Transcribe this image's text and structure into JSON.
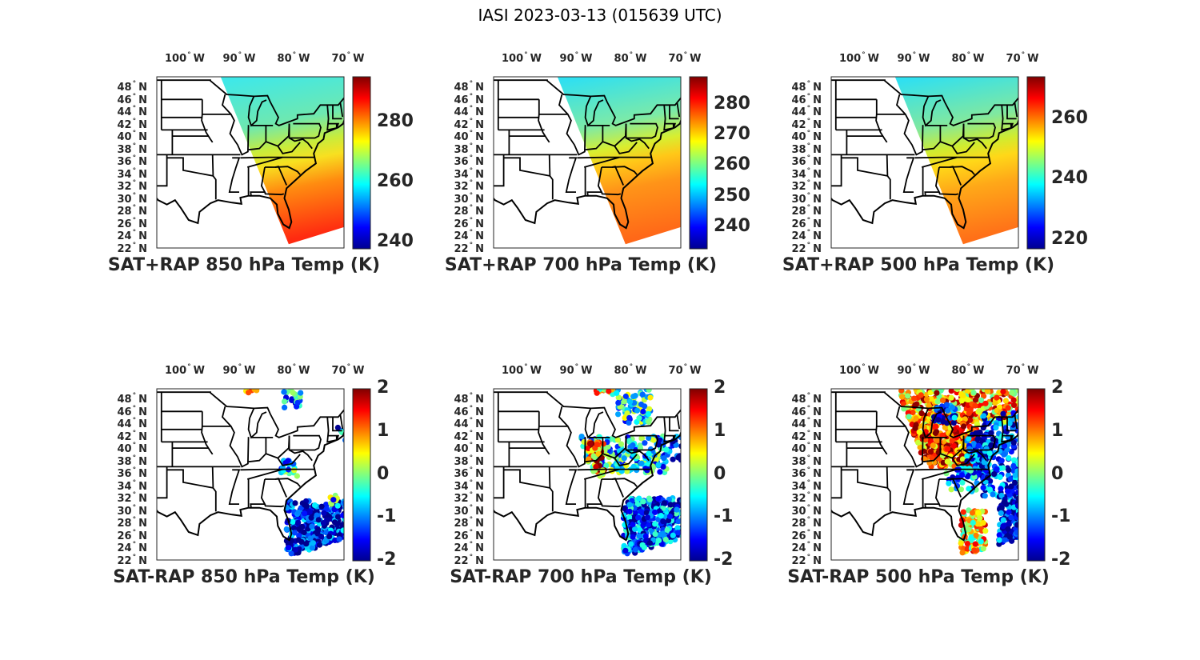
{
  "title": "IASI 2023-03-13 (015639 UTC)",
  "colormap": "jet",
  "lon_ticks": [
    {
      "value": -100,
      "label": "100",
      "hemi": "W"
    },
    {
      "value": -90,
      "label": "90",
      "hemi": "W"
    },
    {
      "value": -80,
      "label": "80",
      "hemi": "W"
    },
    {
      "value": -70,
      "label": "70",
      "hemi": "W"
    }
  ],
  "lat_ticks": [
    {
      "value": 48,
      "label": "48"
    },
    {
      "value": 46,
      "label": "46"
    },
    {
      "value": 44,
      "label": "44"
    },
    {
      "value": 42,
      "label": "42"
    },
    {
      "value": 40,
      "label": "40"
    },
    {
      "value": 38,
      "label": "38"
    },
    {
      "value": 36,
      "label": "36"
    },
    {
      "value": 34,
      "label": "34"
    },
    {
      "value": 32,
      "label": "32"
    },
    {
      "value": 30,
      "label": "30"
    },
    {
      "value": 28,
      "label": "28"
    },
    {
      "value": 26,
      "label": "26"
    },
    {
      "value": 24,
      "label": "24"
    },
    {
      "value": 22,
      "label": "22"
    }
  ],
  "lat_hemi": "N",
  "panels": [
    {
      "title": "SAT+RAP 850 hPa Temp (K)",
      "kind": "temp",
      "clim": [
        238,
        295
      ],
      "cticks": [
        {
          "v": 240,
          "label": "240"
        },
        {
          "v": 260,
          "label": "260"
        },
        {
          "v": 280,
          "label": "280"
        }
      ]
    },
    {
      "title": "SAT+RAP 700 hPa Temp (K)",
      "kind": "temp",
      "clim": [
        233,
        289
      ],
      "cticks": [
        {
          "v": 240,
          "label": "240"
        },
        {
          "v": 250,
          "label": "250"
        },
        {
          "v": 260,
          "label": "260"
        },
        {
          "v": 270,
          "label": "270"
        },
        {
          "v": 280,
          "label": "280"
        }
      ]
    },
    {
      "title": "SAT+RAP 500 hPa Temp (K)",
      "kind": "temp",
      "clim": [
        217,
        274
      ],
      "cticks": [
        {
          "v": 220,
          "label": "220"
        },
        {
          "v": 240,
          "label": "240"
        },
        {
          "v": 260,
          "label": "260"
        }
      ]
    },
    {
      "title": "SAT-RAP 850 hPa Temp (K)",
      "kind": "diff",
      "clim": [
        -2,
        2
      ],
      "cticks": [
        {
          "v": -2,
          "label": "-2"
        },
        {
          "v": -1,
          "label": "-1"
        },
        {
          "v": 0,
          "label": "0"
        },
        {
          "v": 1,
          "label": "1"
        },
        {
          "v": 2,
          "label": "2"
        }
      ]
    },
    {
      "title": "SAT-RAP 700 hPa Temp (K)",
      "kind": "diff",
      "clim": [
        -2,
        2
      ],
      "cticks": [
        {
          "v": -2,
          "label": "-2"
        },
        {
          "v": -1,
          "label": "-1"
        },
        {
          "v": 0,
          "label": "0"
        },
        {
          "v": 1,
          "label": "1"
        },
        {
          "v": 2,
          "label": "2"
        }
      ]
    },
    {
      "title": "SAT-RAP 500 hPa Temp (K)",
      "kind": "diff",
      "clim": [
        -2,
        2
      ],
      "cticks": [
        {
          "v": -2,
          "label": "-2"
        },
        {
          "v": -1,
          "label": "-1"
        },
        {
          "v": 0,
          "label": "0"
        },
        {
          "v": 1,
          "label": "1"
        },
        {
          "v": 2,
          "label": "2"
        }
      ]
    }
  ]
}
